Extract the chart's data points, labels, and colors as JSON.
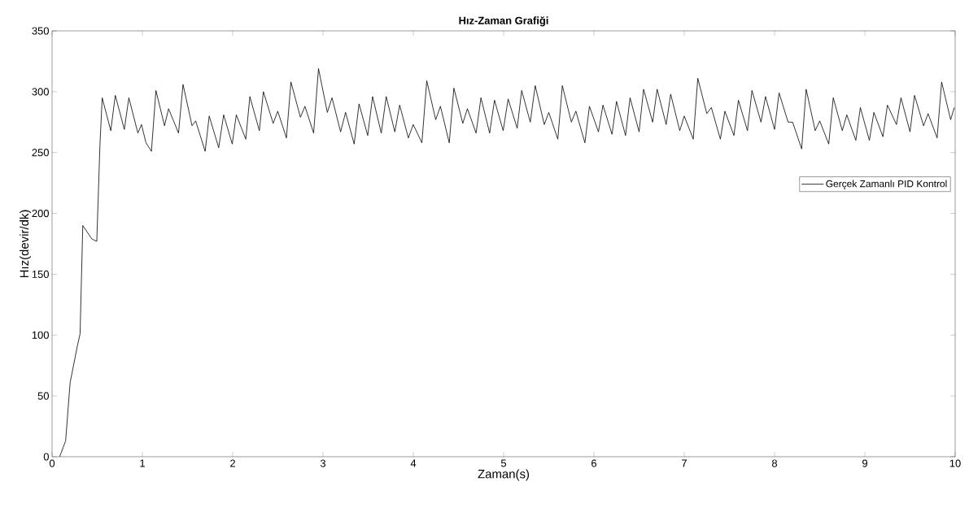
{
  "chart_data": {
    "type": "line",
    "title": "Hız-Zaman Grafiği",
    "xlabel": "Zaman(s)",
    "ylabel": "Hız(devir/dk)",
    "x": [
      0.084,
      0.15,
      0.2,
      0.28,
      0.31,
      0.34,
      0.44,
      0.495,
      0.53,
      0.555,
      0.65,
      0.7,
      0.8,
      0.85,
      0.95,
      0.99,
      1.04,
      1.1,
      1.15,
      1.245,
      1.29,
      1.4,
      1.45,
      1.55,
      1.59,
      1.695,
      1.74,
      1.845,
      1.9,
      1.995,
      2.04,
      2.145,
      2.19,
      2.295,
      2.34,
      2.448,
      2.499,
      2.595,
      2.645,
      2.75,
      2.8,
      2.896,
      2.95,
      3.048,
      3.1,
      3.195,
      3.25,
      3.345,
      3.399,
      3.495,
      3.549,
      3.645,
      3.7,
      3.795,
      3.849,
      3.945,
      3.999,
      4.095,
      4.149,
      4.248,
      4.3,
      4.398,
      4.449,
      4.548,
      4.599,
      4.695,
      4.749,
      4.845,
      4.899,
      4.995,
      5.05,
      5.15,
      5.2,
      5.295,
      5.35,
      5.45,
      5.5,
      5.6,
      5.65,
      5.75,
      5.8,
      5.9,
      5.95,
      6.05,
      6.1,
      6.2,
      6.25,
      6.35,
      6.4,
      6.5,
      6.55,
      6.65,
      6.7,
      6.8,
      6.85,
      6.95,
      7.0,
      7.1,
      7.15,
      7.25,
      7.3,
      7.4,
      7.45,
      7.55,
      7.6,
      7.7,
      7.75,
      7.85,
      7.9,
      8.0,
      8.05,
      8.15,
      8.2,
      8.3,
      8.35,
      8.45,
      8.5,
      8.6,
      8.65,
      8.75,
      8.8,
      8.9,
      8.95,
      9.05,
      9.1,
      9.2,
      9.25,
      9.35,
      9.4,
      9.5,
      9.55,
      9.65,
      9.7,
      9.8,
      9.85,
      9.95,
      9.99
    ],
    "series": [
      {
        "name": "Gerçek Zamanlı PID Kontrol",
        "color": "#000000",
        "values": [
          0,
          13,
          61,
          91,
          101,
          190,
          179,
          177,
          256,
          295,
          268,
          297,
          269,
          295,
          266,
          273,
          258,
          251,
          301,
          272,
          286,
          266,
          306,
          272,
          276,
          251,
          280,
          254,
          281,
          257,
          281,
          261,
          296,
          268,
          300,
          274,
          284,
          262,
          308,
          279,
          288,
          266,
          319,
          283,
          295,
          267,
          283,
          257,
          290,
          264,
          296,
          266,
          296,
          267,
          289,
          262,
          273,
          258,
          309,
          277,
          288,
          258,
          303,
          274,
          286,
          266,
          295,
          266,
          293,
          268,
          294,
          270,
          301,
          275,
          305,
          273,
          283,
          261,
          305,
          275,
          284,
          258,
          288,
          267,
          289,
          265,
          292,
          264,
          295,
          267,
          302,
          275,
          302,
          273,
          298,
          268,
          280,
          261,
          311,
          282,
          287,
          261,
          284,
          264,
          293,
          268,
          301,
          275,
          296,
          269,
          299,
          275,
          275,
          253,
          302,
          268,
          276,
          257,
          295,
          268,
          281,
          260,
          287,
          260,
          283,
          263,
          289,
          273,
          295,
          267,
          297,
          272,
          282,
          262,
          308,
          277,
          287
        ]
      }
    ],
    "xlim": [
      0,
      10
    ],
    "ylim": [
      0,
      350
    ],
    "xticks": [
      0,
      1,
      2,
      3,
      4,
      5,
      6,
      7,
      8,
      9,
      10
    ],
    "yticks": [
      0,
      50,
      100,
      150,
      200,
      250,
      300,
      350
    ],
    "grid": false,
    "legend": "right",
    "marker": "none",
    "line_style": "solid"
  }
}
